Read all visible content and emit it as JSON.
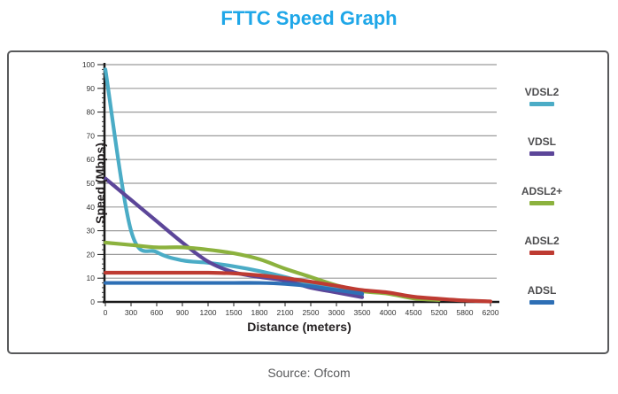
{
  "title": "FTTC Speed Graph",
  "source": "Source: Ofcom",
  "colors": {
    "title": "#1FA7E8",
    "frame_border": "#58595B",
    "gridline": "#9B9B9B",
    "axis": "#1A1A1A",
    "tick_label": "#333333",
    "legend_label": "#4D4D4F"
  },
  "chart_data": {
    "type": "line",
    "title": "FTTC Speed Graph",
    "xlabel": "Distance (meters)",
    "ylabel": "Speed (Mbps)",
    "x_tick_labels": [
      "0",
      "300",
      "600",
      "900",
      "1200",
      "1500",
      "1800",
      "2100",
      "2500",
      "3000",
      "3500",
      "4000",
      "4500",
      "5200",
      "5800",
      "6200"
    ],
    "y_ticks": [
      0,
      10,
      20,
      30,
      40,
      50,
      60,
      70,
      80,
      90,
      100
    ],
    "ylim": [
      0,
      100
    ],
    "grid": "horizontal",
    "legend_position": "right",
    "series": [
      {
        "name": "VDSL2",
        "color": "#4BACC6",
        "values": [
          98,
          30,
          21,
          17.5,
          16.5,
          15,
          13,
          10.5,
          7.5,
          5.3,
          3,
          null,
          null,
          null,
          null,
          null
        ]
      },
      {
        "name": "VDSL",
        "color": "#5C4699",
        "values": [
          52,
          43,
          34,
          25,
          17,
          12.5,
          10.5,
          9,
          6,
          4,
          2,
          null,
          null,
          null,
          null,
          null
        ]
      },
      {
        "name": "ADSL2+",
        "color": "#8CB23E",
        "values": [
          25,
          24,
          23,
          23,
          22,
          20.5,
          18,
          14,
          10.5,
          7,
          4.5,
          3.5,
          1.5,
          0.8,
          null,
          null
        ]
      },
      {
        "name": "ADSL2",
        "color": "#BE3B32",
        "values": [
          12.3,
          12.3,
          12.3,
          12.3,
          12.3,
          12,
          11.2,
          10,
          8.5,
          6.8,
          5,
          4,
          2.2,
          1.3,
          0.6,
          0.2
        ]
      },
      {
        "name": "ADSL",
        "color": "#2E6FB5",
        "values": [
          8,
          8,
          8,
          8,
          8,
          8,
          8,
          7.6,
          6.6,
          5,
          3.5,
          null,
          null,
          null,
          null,
          null
        ]
      }
    ]
  }
}
